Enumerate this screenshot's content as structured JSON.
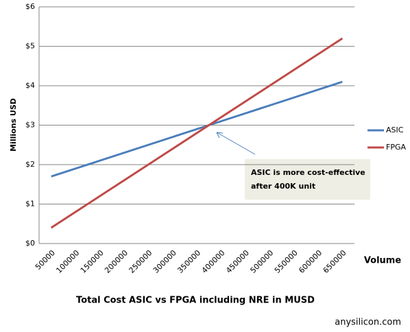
{
  "chart_data": {
    "type": "line",
    "title": "Total Cost ASIC vs FPGA including NRE in MUSD",
    "x_label": "Volume",
    "y_label": "Millions USD",
    "watermark": "anysilicon.com",
    "annotation": [
      "ASIC is more cost-effective",
      "after 400K unit"
    ],
    "categories": [
      "50000",
      "100000",
      "150000",
      "200000",
      "250000",
      "300000",
      "350000",
      "400000",
      "450000",
      "500000",
      "550000",
      "600000",
      "650000"
    ],
    "series": [
      {
        "name": "ASIC",
        "color": "#4a7ebb",
        "values": [
          1.7,
          1.9,
          2.1,
          2.3,
          2.5,
          2.7,
          2.9,
          3.1,
          3.3,
          3.5,
          3.7,
          3.9,
          4.1
        ]
      },
      {
        "name": "FPGA",
        "color": "#be4b48",
        "values": [
          0.4,
          0.8,
          1.2,
          1.6,
          2.0,
          2.4,
          2.8,
          3.2,
          3.6,
          4.0,
          4.4,
          4.8,
          5.2
        ]
      }
    ],
    "ylim": [
      0,
      6
    ],
    "yticks": [
      {
        "value": 0,
        "label": "$0"
      },
      {
        "value": 1,
        "label": "$1"
      },
      {
        "value": 2,
        "label": "$2"
      },
      {
        "value": 3,
        "label": "$3"
      },
      {
        "value": 4,
        "label": "$4"
      },
      {
        "value": 5,
        "label": "$5"
      },
      {
        "value": 6,
        "label": "$6"
      }
    ],
    "grid": true,
    "legend": "right"
  }
}
